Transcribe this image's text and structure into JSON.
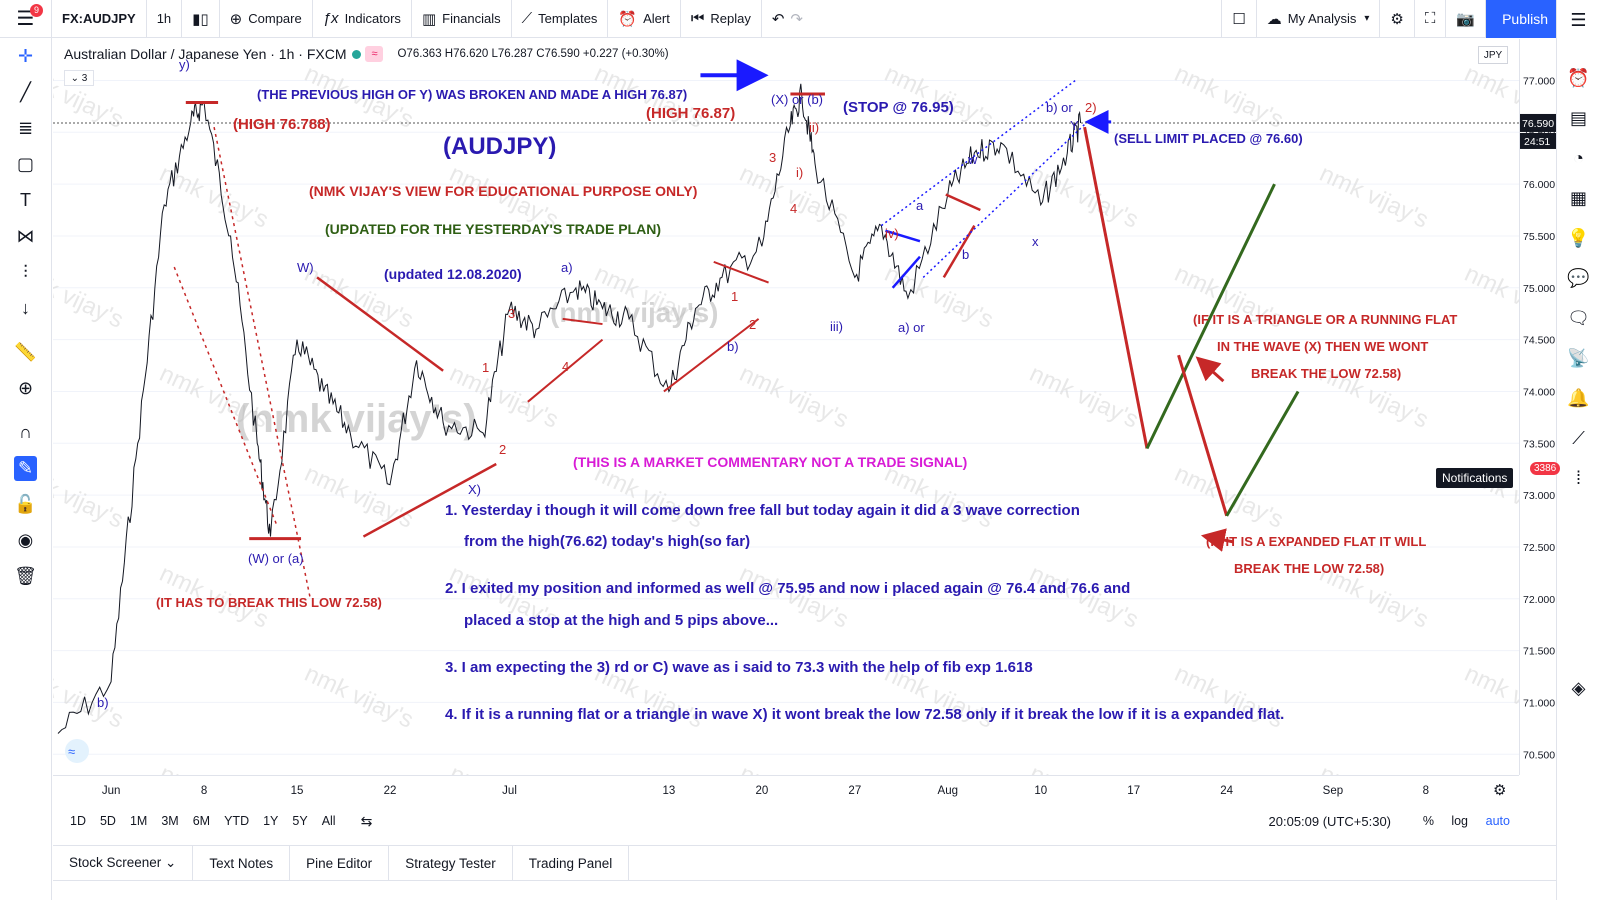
{
  "topbar": {
    "menu_badge": "9",
    "symbol": "FX:AUDJPY",
    "interval": "1h",
    "compare": "Compare",
    "indicators": "Indicators",
    "financials": "Financials",
    "templates": "Templates",
    "alert": "Alert",
    "replay": "Replay",
    "my_analysis": "My Analysis",
    "publish": "Publish"
  },
  "legend": {
    "title": "Australian Dollar / Japanese Yen · 1h · FXCM",
    "ohlc": "O76.363 H76.620 L76.287 C76.590 +0.227 (+0.30%)",
    "collapse_count": "3"
  },
  "price_axis": {
    "currency": "JPY",
    "ticks": [
      "77.000",
      "76.500",
      "76.000",
      "75.500",
      "75.000",
      "74.500",
      "74.000",
      "73.500",
      "73.000",
      "72.500",
      "72.000",
      "71.500",
      "71.000",
      "70.500"
    ],
    "last_price": "76.590",
    "countdown": "24:51"
  },
  "time_axis": {
    "ticks": [
      "Jun",
      "8",
      "15",
      "22",
      "Jul",
      "13",
      "20",
      "27",
      "Aug",
      "10",
      "17",
      "24",
      "Sep",
      "8"
    ]
  },
  "range_bar": {
    "ranges": [
      "1D",
      "5D",
      "1M",
      "3M",
      "6M",
      "YTD",
      "1Y",
      "5Y",
      "All"
    ],
    "clock": "20:05:09 (UTC+5:30)",
    "pct": "%",
    "log": "log",
    "auto": "auto"
  },
  "bottom_tabs": [
    "Stock Screener",
    "Text Notes",
    "Pine Editor",
    "Strategy Tester",
    "Trading Panel"
  ],
  "notifications": {
    "label": "Notifications",
    "count": "3386"
  },
  "chart_data": {
    "type": "line",
    "title": "(AUDJPY)",
    "symbol": "AUDJPY",
    "interval": "1h",
    "ylim": [
      70.3,
      77.4
    ],
    "last_price": 76.59,
    "series": [
      {
        "x": [
          "May 28",
          "Jun 1",
          "Jun 3",
          "Jun 5",
          "Jun 7",
          "Jun 8",
          "Jun 10",
          "Jun 12",
          "Jun 13",
          "Jun 15",
          "Jun 17",
          "Jun 19",
          "Jun 22",
          "Jun 24",
          "Jun 26",
          "Jun 29",
          "Jul 1",
          "Jul 3",
          "Jul 6",
          "Jul 8",
          "Jul 10",
          "Jul 13",
          "Jul 15",
          "Jul 17",
          "Jul 20",
          "Jul 22",
          "Jul 23",
          "Jul 24",
          "Jul 27",
          "Jul 29",
          "Jul 31",
          "Aug 3",
          "Aug 5",
          "Aug 7",
          "Aug 10",
          "Aug 12",
          "Aug 13"
        ],
        "values": [
          70.7,
          71.2,
          73.5,
          75.8,
          76.6,
          76.79,
          75.5,
          73.5,
          72.6,
          74.5,
          74.0,
          73.6,
          73.1,
          74.3,
          73.7,
          73.6,
          74.8,
          74.6,
          75.0,
          74.8,
          74.7,
          74.0,
          74.8,
          75.1,
          75.4,
          76.5,
          76.87,
          76.2,
          75.1,
          75.6,
          74.9,
          75.9,
          76.3,
          76.4,
          75.8,
          76.3,
          76.59
        ]
      }
    ],
    "levels": [
      {
        "label": "(HIGH 76.788)",
        "value": 76.788
      },
      {
        "label": "(HIGH 76.87)",
        "value": 76.87
      },
      {
        "label": "(STOP @ 76.95)",
        "value": 76.95
      },
      {
        "label": "(SELL LIMIT PLACED @ 76.60)",
        "value": 76.6
      },
      {
        "label": "(W) or (a)",
        "value": 72.58
      }
    ],
    "annotations": {
      "view": "(NMK VIJAY'S VIEW FOR EDUCATIONAL PURPOSE ONLY)",
      "updated_plan": "(UPDATED FOR THE YESTERDAY'S TRADE PLAN)",
      "updated_date": "(updated 12.08.2020)",
      "prev_high": "(THE PREVIOUS HIGH OF Y) WAS BROKEN AND MADE A HIGH 76.87)",
      "disclaimer": "(THIS IS A MARKET COMMENTARY NOT A TRADE SIGNAL)",
      "break_low": "(IT HAS TO BREAK THIS LOW 72.58)",
      "triangle_note": [
        "(IF IT IS A TRIANGLE OR A RUNNING FLAT",
        "IN THE WAVE (X) THEN WE WONT",
        "BREAK THE LOW 72.58)"
      ],
      "expanded_note": [
        "(IF IT IS A EXPANDED FLAT IT WILL",
        "BREAK THE LOW 72.58)"
      ],
      "notes": [
        "1. Yesterday i though it will come down free fall but today again it did a 3 wave correction",
        "from the high(76.62) today's high(so far)",
        "2. I exited my position and informed as well @ 75.95 and now i placed again @ 76.4 and 76.6 and",
        "placed a stop at the high and 5 pips above...",
        "3. I am expecting the 3) rd  or C) wave as i said to 73.3 with the help of fib exp 1.618",
        "4. If it is a running flat or a triangle in wave X) it wont break the low 72.58 only if it break the low if it is a expanded flat."
      ],
      "watermark": "nmk vijay's",
      "watermark_big": "(nmk vijay's)"
    },
    "wave_labels": [
      "b)",
      "y)",
      "W)",
      "(W) or (a)",
      "X)",
      "1",
      "2",
      "3",
      "4",
      "a)",
      "b)",
      "1",
      "2",
      "3",
      "4",
      "(X) or (b)",
      "ii)",
      "i)",
      "iii)",
      "iv)",
      "a) or",
      "a",
      "b",
      "w",
      "x",
      "b) or",
      "2)",
      "Y"
    ]
  }
}
